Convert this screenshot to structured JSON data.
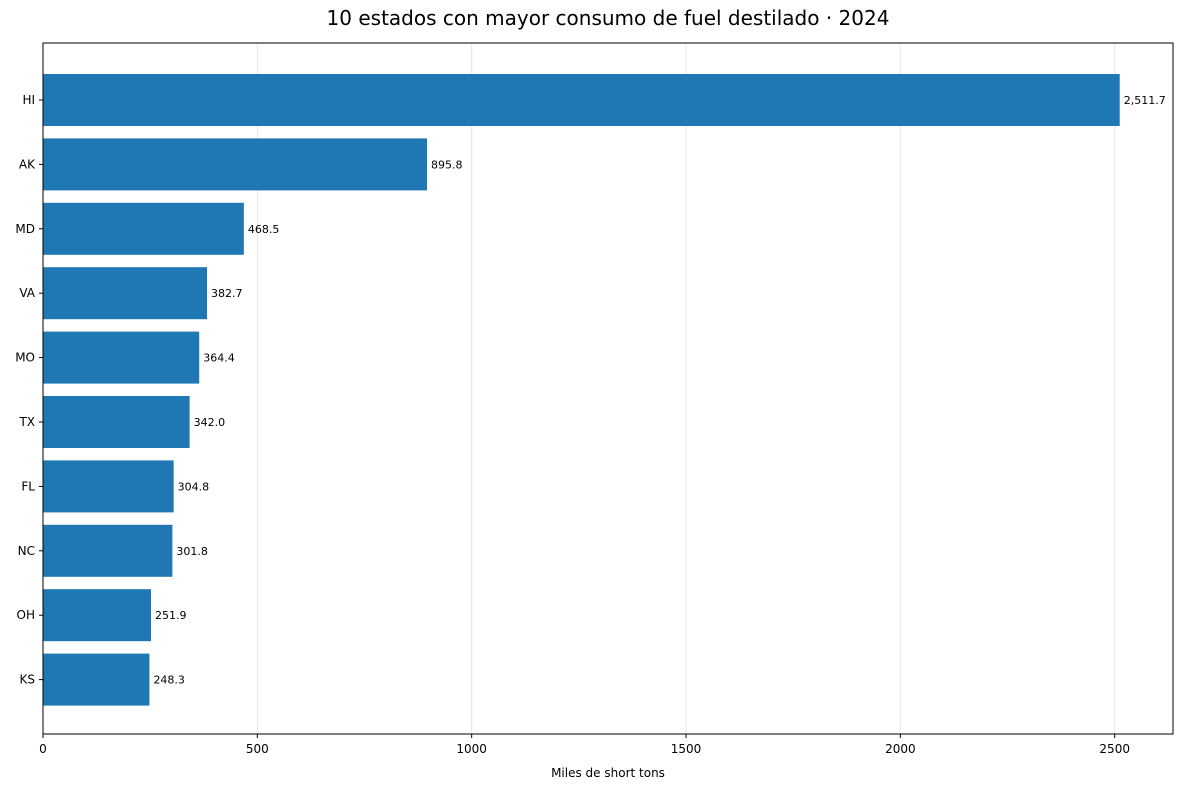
{
  "chart_data": {
    "type": "bar",
    "orientation": "horizontal",
    "title": "10 estados con mayor consumo de fuel destilado · 2024",
    "xlabel": "Miles de short tons",
    "ylabel": "",
    "xlim": [
      0,
      2636
    ],
    "xticks": [
      0,
      500,
      1000,
      1500,
      2000,
      2500
    ],
    "grid": "vertical",
    "bar_color": "#1f77b4",
    "categories": [
      "HI",
      "AK",
      "MD",
      "VA",
      "MO",
      "TX",
      "FL",
      "NC",
      "OH",
      "KS"
    ],
    "values": [
      2511.7,
      895.8,
      468.5,
      382.7,
      364.4,
      342.0,
      304.8,
      301.8,
      251.9,
      248.3
    ],
    "data_labels": [
      "2,511.7",
      "895.8",
      "468.5",
      "382.7",
      "364.4",
      "342.0",
      "304.8",
      "301.8",
      "251.9",
      "248.3"
    ]
  }
}
